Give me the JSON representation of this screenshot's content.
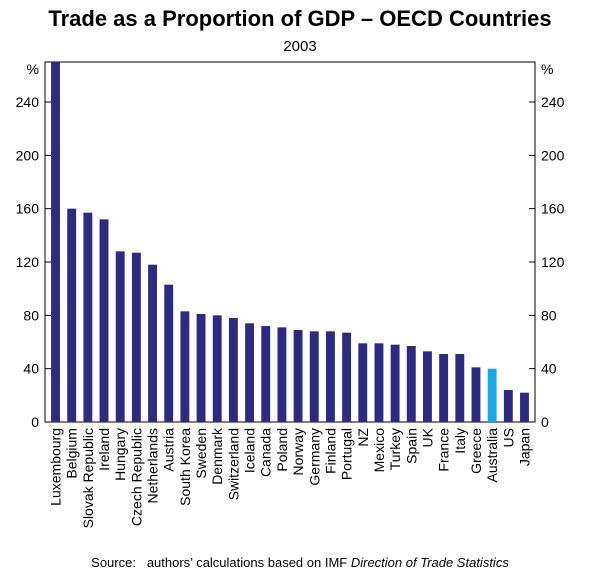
{
  "chart_data": {
    "type": "bar",
    "title": "Trade as a Proportion of GDP – OECD Countries",
    "subtitle": "2003",
    "unit_left": "%",
    "unit_right": "%",
    "ylim": [
      0,
      270
    ],
    "yticks": [
      0,
      40,
      80,
      120,
      160,
      200,
      240
    ],
    "grid": false,
    "categories": [
      "Luxembourg",
      "Belgium",
      "Slovak Republic",
      "Ireland",
      "Hungary",
      "Czech Republic",
      "Netherlands",
      "Austria",
      "South Korea",
      "Sweden",
      "Denmark",
      "Switzerland",
      "Iceland",
      "Canada",
      "Poland",
      "Norway",
      "Germany",
      "Finland",
      "Portugal",
      "NZ",
      "Mexico",
      "Turkey",
      "Spain",
      "UK",
      "France",
      "Italy",
      "Greece",
      "Australia",
      "US",
      "Japan"
    ],
    "values": [
      270,
      160,
      157,
      152,
      128,
      127,
      118,
      103,
      83,
      81,
      80,
      78,
      74,
      72,
      71,
      69,
      68,
      68,
      67,
      59,
      59,
      58,
      57,
      53,
      51,
      51,
      41,
      40,
      24,
      22
    ],
    "colors": {
      "default": "#2e2a80",
      "highlight": "#1aa7e6",
      "highlight_category": "Australia"
    }
  },
  "source": {
    "prefix": "Source:",
    "text": "authors’ calculations based on IMF",
    "italic": "Direction of Trade Statistics"
  }
}
